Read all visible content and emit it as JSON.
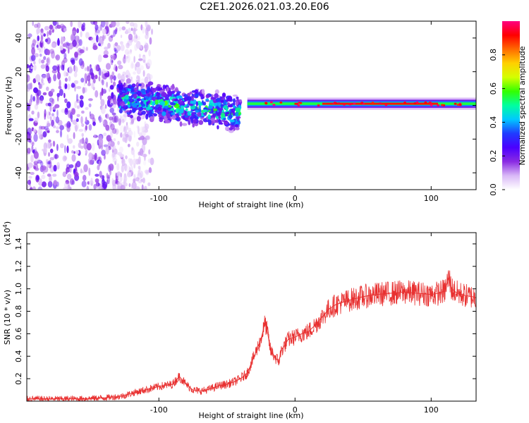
{
  "title": "C2E1.2026.021.03.20.E06",
  "colors": {
    "snr_line": "#e83030",
    "colormap": [
      "#ffffff",
      "#d9b8f7",
      "#8a2be2",
      "#4b00ff",
      "#1f3bff",
      "#00c8ff",
      "#00ff9f",
      "#33ff00",
      "#d4ff00",
      "#ffd000",
      "#ff6a00",
      "#ff0000",
      "#ff0080"
    ]
  },
  "chart_data": [
    {
      "type": "heatmap",
      "name": "spectrogram",
      "title": "",
      "xlabel": "Height of straight line (km)",
      "ylabel": "Frequency (Hz)",
      "xlim": [
        -197,
        133
      ],
      "ylim": [
        -50,
        50
      ],
      "xticks": [
        -100,
        0,
        100
      ],
      "xtick_labels": [
        "-100",
        "0",
        "100"
      ],
      "yticks": [
        -40,
        -20,
        0,
        20,
        40
      ],
      "ytick_labels": [
        "-40",
        "-20",
        "0",
        "20",
        "40"
      ],
      "colorbar": {
        "label": "Normalized spectral amplitude",
        "range": [
          0,
          1
        ],
        "ticks": [
          0.0,
          0.2,
          0.4,
          0.6,
          0.8
        ],
        "tick_labels": [
          "0.0",
          "0.2",
          "0.4",
          "0.6",
          "0.8"
        ]
      },
      "features": [
        {
          "region": "noise",
          "x_range": [
            -197,
            -130
          ],
          "freq_range": [
            -50,
            50
          ],
          "amplitude": 0.12
        },
        {
          "region": "transition",
          "x_range": [
            -130,
            -40
          ],
          "center_freq": [
            5,
            0,
            -5
          ],
          "freq_spread": 6,
          "amplitude": 0.3
        },
        {
          "region": "steady_tone",
          "x_range": [
            -35,
            133
          ],
          "center_freq": 1,
          "freq_spread": 3,
          "amplitude": 0.9
        }
      ]
    },
    {
      "type": "line",
      "name": "snr",
      "title": "",
      "xlabel": "Height of straight line (km)",
      "ylabel": "SNR (10 * v/v)",
      "y_scale_label": "(x10",
      "y_scale_exponent": "4",
      "xlim": [
        -197,
        133
      ],
      "ylim": [
        0,
        1.5
      ],
      "xticks": [
        -100,
        0,
        100
      ],
      "xtick_labels": [
        "-100",
        "0",
        "100"
      ],
      "yticks": [
        0.2,
        0.4,
        0.6,
        0.8,
        1.0,
        1.2,
        1.4
      ],
      "ytick_labels": [
        "0.2",
        "0.4",
        "0.6",
        "0.8",
        "1.0",
        "1.2",
        "1.4"
      ],
      "series": [
        {
          "name": "SNR",
          "x": [
            -197,
            -180,
            -160,
            -140,
            -130,
            -125,
            -120,
            -110,
            -100,
            -90,
            -85,
            -80,
            -75,
            -70,
            -65,
            -60,
            -55,
            -50,
            -45,
            -40,
            -35,
            -30,
            -25,
            -22,
            -20,
            -18,
            -15,
            -12,
            -10,
            -5,
            0,
            5,
            10,
            15,
            20,
            25,
            30,
            40,
            50,
            60,
            70,
            80,
            90,
            100,
            105,
            110,
            113,
            115,
            118,
            120,
            125,
            130,
            133
          ],
          "values": [
            0.02,
            0.02,
            0.02,
            0.03,
            0.04,
            0.05,
            0.07,
            0.1,
            0.13,
            0.15,
            0.22,
            0.15,
            0.1,
            0.09,
            0.1,
            0.12,
            0.14,
            0.15,
            0.17,
            0.2,
            0.25,
            0.4,
            0.55,
            0.7,
            0.6,
            0.45,
            0.4,
            0.35,
            0.45,
            0.55,
            0.57,
            0.6,
            0.62,
            0.68,
            0.75,
            0.82,
            0.86,
            0.9,
            0.93,
            0.95,
            0.96,
            0.97,
            0.96,
            0.95,
            0.96,
            0.98,
            1.1,
            1.0,
            0.97,
            0.96,
            0.94,
            0.93,
            0.92
          ]
        }
      ]
    }
  ]
}
